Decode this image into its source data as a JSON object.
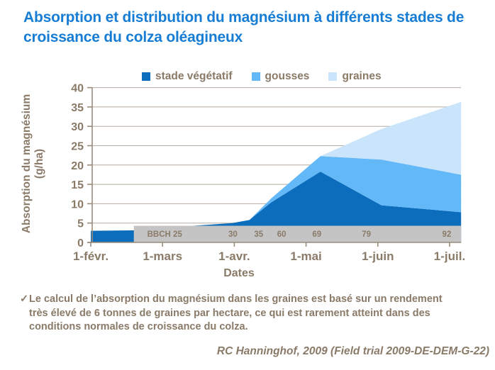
{
  "title": "Absorption et distribution du magnésium à différents stades de croissance du colza oléagineux",
  "colors": {
    "title": "#177dd4",
    "text": "#8a7a68",
    "grid": "#b5aca2",
    "axis": "#9a8c7c",
    "background": "#ffffff"
  },
  "chart_data": {
    "type": "area",
    "stacked": true,
    "title": "",
    "xlabel": "Dates",
    "ylabel": "Absorption du magnésium (g/ha)",
    "ylabel_line1": "Absorption du magnésium",
    "ylabel_line2": "(g/ha)",
    "x_unit": "months after 1-févr.",
    "x": [
      0,
      1.0,
      1.43,
      1.97,
      2.21,
      2.51,
      3.2,
      4.05,
      5.16
    ],
    "series": [
      {
        "name": "stade végétatif",
        "color": "#0d6dbd",
        "values": [
          3.0,
          3.2,
          4.3,
          5.0,
          5.8,
          10.3,
          18.3,
          9.6,
          7.8
        ]
      },
      {
        "name": "gousses",
        "color": "#63b8f7",
        "values": [
          0,
          0,
          0,
          0,
          0,
          1.0,
          4.0,
          11.8,
          9.7
        ]
      },
      {
        "name": "graines",
        "color": "#c9e4fb",
        "values": [
          0,
          0,
          0,
          0,
          0,
          0,
          0,
          7.9,
          18.8
        ]
      }
    ],
    "x_tick_labels": [
      "1-févr.",
      "1-mars",
      "1-avr.",
      "1-mai",
      "1-juin",
      "1-juil."
    ],
    "ylim": [
      0,
      40
    ],
    "y_tick_step": 5,
    "grid": true,
    "legend_position": "top",
    "bbch_bar": {
      "color": "#c4c4c4",
      "start": 0.6,
      "end": 5.16,
      "top_value": 4.3,
      "labels": [
        {
          "pos": 1.03,
          "text": "BBCH 25"
        },
        {
          "pos": 1.98,
          "text": "30"
        },
        {
          "pos": 2.34,
          "text": "35"
        },
        {
          "pos": 2.66,
          "text": "60"
        },
        {
          "pos": 3.15,
          "text": "69"
        },
        {
          "pos": 3.84,
          "text": "79"
        },
        {
          "pos": 4.96,
          "text": "92"
        }
      ]
    }
  },
  "footnote": {
    "check": "✓",
    "text": "Le calcul de l’absorption du magnésium dans les graines est basé sur un rendement très élevé de 6 tonnes de graines par hectare, ce qui est rarement atteint dans des conditions normales de croissance du colza."
  },
  "citation": "RC Hanninghof, 2009 (Field trial 2009-DE-DEM-G-22)"
}
